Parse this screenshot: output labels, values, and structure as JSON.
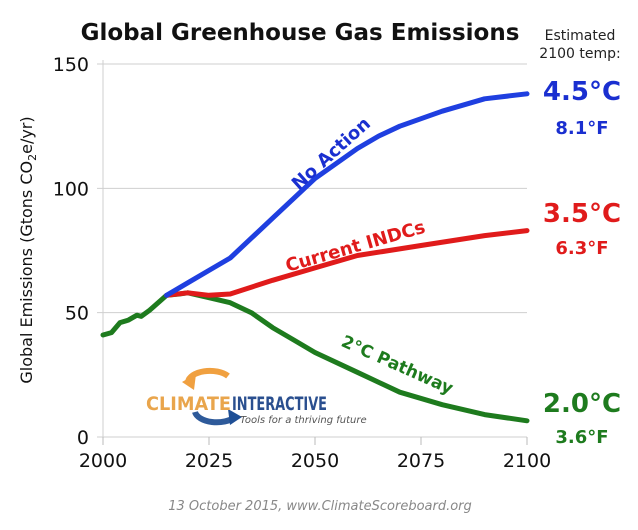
{
  "chart_data": {
    "type": "line",
    "title": "Global Greenhouse Gas Emissions",
    "ylabel": "Global Emissions (Gtons CO2e/yr)",
    "ylabel_parts": {
      "main": "Global Emissions (Gtons CO",
      "sub": "2",
      "rest": "e/yr)"
    },
    "xlabel": "",
    "xlim": [
      2000,
      2100
    ],
    "ylim": [
      0,
      150
    ],
    "xticks": [
      2000,
      2025,
      2050,
      2075,
      2100
    ],
    "yticks": [
      0,
      50,
      100,
      150
    ],
    "grid": "horizontal",
    "temp_header": [
      "Estimated",
      "2100 temp:"
    ],
    "series": [
      {
        "name": "No Action",
        "color": "#1f3fe0",
        "label_color": "#1a2fd0",
        "temp_c": "4.5°C",
        "temp_f": "8.1°F",
        "x": [
          2015,
          2020,
          2025,
          2030,
          2035,
          2040,
          2045,
          2050,
          2055,
          2060,
          2065,
          2070,
          2075,
          2080,
          2090,
          2100
        ],
        "y": [
          57,
          62,
          67,
          72,
          80,
          88,
          96,
          104,
          110,
          116,
          121,
          125,
          128,
          131,
          136,
          138
        ]
      },
      {
        "name": "Current INDCs",
        "color": "#e01b1b",
        "label_color": "#e01b1b",
        "temp_c": "3.5°C",
        "temp_f": "6.3°F",
        "x": [
          2015,
          2020,
          2025,
          2030,
          2040,
          2050,
          2060,
          2075,
          2090,
          2100
        ],
        "y": [
          57,
          58,
          57,
          57.5,
          63,
          68,
          73,
          77,
          81,
          83
        ]
      },
      {
        "name": "2°C Pathway",
        "color": "#1e7b1e",
        "label_color": "#1e7b1e",
        "temp_c": "2.0°C",
        "temp_f": "3.6°F",
        "x": [
          2000,
          2002,
          2004,
          2006,
          2008,
          2009,
          2011,
          2013,
          2015,
          2018,
          2020,
          2025,
          2030,
          2035,
          2040,
          2045,
          2050,
          2060,
          2070,
          2080,
          2090,
          2100
        ],
        "y": [
          41,
          42,
          46,
          47,
          49,
          48.5,
          51,
          54,
          57,
          57.5,
          58,
          56,
          54,
          50,
          44,
          39,
          34,
          26,
          18,
          13,
          9,
          6.5
        ]
      }
    ]
  },
  "logo": {
    "word1": "CLIMATE",
    "word2": "INTERACTIVE",
    "tagline": "Tools for a thriving future"
  },
  "footer": "13 October 2015, www.ClimateScoreboard.org"
}
